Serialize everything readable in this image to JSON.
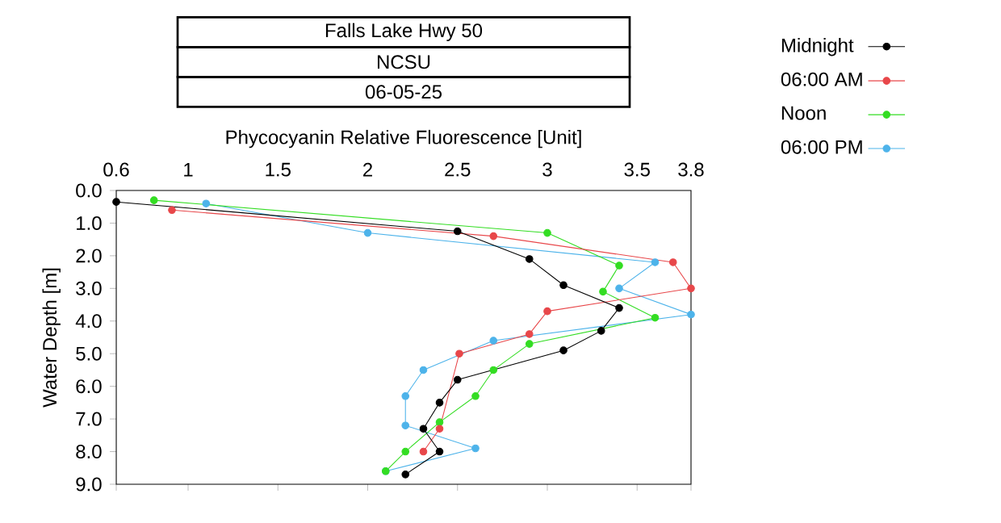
{
  "chart_data": {
    "type": "line",
    "title": "Falls Lake Hwy 50",
    "subtitle": "NCSU",
    "annotations": [
      "06-05-25"
    ],
    "xlabel": "Phycocyanin Relative Fluorescence [Unit]",
    "ylabel": "Water Depth [m]",
    "xlim": [
      0.6,
      3.8
    ],
    "xticks": [
      0.6,
      1,
      1.5,
      2,
      2.5,
      3,
      3.5,
      3.8
    ],
    "ylim": [
      9,
      0
    ],
    "yticks": [
      {
        "value": 0,
        "label": "0.0"
      },
      {
        "value": 1,
        "label": "1.0"
      },
      {
        "value": 2,
        "label": "2.0"
      },
      {
        "value": 3,
        "label": "3.0"
      },
      {
        "value": 4,
        "label": "4.0"
      },
      {
        "value": 5,
        "label": "5.0"
      },
      {
        "value": 6,
        "label": "6.0"
      },
      {
        "value": 7,
        "label": "7.0"
      },
      {
        "value": 8,
        "label": "8.0"
      },
      {
        "value": 9,
        "label": "9.0"
      }
    ],
    "grid": false,
    "legend": "top right",
    "marker": "circle",
    "line_style": "solid",
    "series": [
      {
        "name": "Midnight",
        "color": "#000000",
        "x": [
          0.6,
          2.5,
          2.9,
          3.09,
          3.4,
          3.3,
          3.09,
          2.5,
          2.4,
          2.31,
          2.4,
          2.21
        ],
        "values": [
          0.35,
          1.25,
          2.1,
          2.9,
          3.6,
          4.3,
          4.9,
          5.8,
          6.5,
          7.3,
          8.0,
          8.7
        ]
      },
      {
        "name": "06:00 AM",
        "color": "#e8474a",
        "x": [
          0.91,
          2.7,
          3.7,
          3.8,
          3.0,
          2.9,
          2.51,
          null,
          null,
          2.4,
          2.31,
          null
        ],
        "values": [
          0.6,
          1.4,
          2.2,
          3.0,
          3.7,
          4.4,
          5.0,
          null,
          null,
          7.3,
          8.0,
          null
        ]
      },
      {
        "name": "Noon",
        "color": "#33dd22",
        "x": [
          0.81,
          3.0,
          3.4,
          3.31,
          3.6,
          2.9,
          2.7,
          2.6,
          2.4,
          2.21,
          2.1
        ],
        "values": [
          0.3,
          1.3,
          2.3,
          3.1,
          3.9,
          4.7,
          5.5,
          6.3,
          7.1,
          8.0,
          8.6
        ]
      },
      {
        "name": "06:00 PM",
        "color": "#4db3ea",
        "x": [
          1.1,
          2.0,
          3.6,
          3.4,
          3.8,
          2.7,
          2.31,
          2.21,
          2.21,
          2.6,
          2.1
        ],
        "values": [
          0.4,
          1.3,
          2.2,
          3.0,
          3.8,
          4.6,
          5.5,
          6.3,
          7.2,
          7.9,
          8.6
        ]
      }
    ]
  }
}
